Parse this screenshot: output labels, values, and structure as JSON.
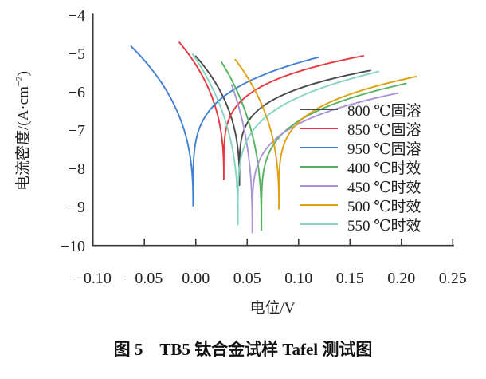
{
  "figure": {
    "caption": "图 5　TB5 钛合金试样 Tafel 测试图"
  },
  "chart_data": {
    "type": "line",
    "title": "图 5　TB5 钛合金试样 Tafel 测试图",
    "xlabel": "电位/V",
    "ylabel": "电流密度/(A·cm−2)",
    "ylabel_parts": {
      "pre": "电流密度/(A·cm",
      "sup": "−2",
      "post": ")"
    },
    "xlim": [
      -0.1,
      0.25
    ],
    "ylim": [
      -10,
      -4
    ],
    "grid": false,
    "legend_position": "inside-right",
    "x_ticks": {
      "values": [
        -0.1,
        -0.05,
        0.0,
        0.05,
        0.1,
        0.15,
        0.2,
        0.25
      ],
      "labels": [
        "−0.10",
        "−0.05",
        "0.00",
        "0.05",
        "0.10",
        "0.15",
        "0.20",
        "0.25"
      ]
    },
    "y_ticks": {
      "values": [
        -4,
        -5,
        -6,
        -7,
        -8,
        -9,
        -10
      ],
      "labels": [
        "−4",
        "−5",
        "−6",
        "−7",
        "−8",
        "−9",
        "−10"
      ]
    },
    "axis_color": "#3a3a3a",
    "series_note": "Tafel polarization curves: log10 current density (A·cm−2) vs potential (V). Each curve: cathodic branch start point, corrosion potential (dip), minimum log current at dip, anodic branch end point.",
    "series": [
      {
        "name": "800 ℃固溶",
        "color": "#4a4a4c",
        "cathodic_start": [
          0.0,
          -5.05
        ],
        "ecorr_V": 0.0425,
        "log_i_min": -8.41,
        "anodic_end": [
          0.17,
          -5.42
        ]
      },
      {
        "name": "850 ℃固溶",
        "color": "#e8383f",
        "cathodic_start": [
          -0.016,
          -4.69
        ],
        "ecorr_V": 0.0273,
        "log_i_min": -8.26,
        "anodic_end": [
          0.163,
          -5.04
        ]
      },
      {
        "name": "950 ℃固溶",
        "color": "#4280d4",
        "cathodic_start": [
          -0.063,
          -4.79
        ],
        "ecorr_V": -0.0026,
        "log_i_min": -8.95,
        "anodic_end": [
          0.119,
          -5.08
        ]
      },
      {
        "name": "400 ℃时效",
        "color": "#55b35f",
        "cathodic_start": [
          0.025,
          -5.2
        ],
        "ecorr_V": 0.0639,
        "log_i_min": -9.58,
        "anodic_end": [
          0.2045,
          -5.76
        ]
      },
      {
        "name": "450 ℃时效",
        "color": "#ab93d6",
        "cathodic_start": [
          0.035,
          -5.8
        ],
        "ecorr_V": 0.055,
        "log_i_min": -9.65,
        "anodic_end": [
          0.1966,
          -6.01
        ]
      },
      {
        "name": "500 ℃时效",
        "color": "#dfa013",
        "cathodic_start": [
          0.0385,
          -5.14
        ],
        "ecorr_V": 0.0809,
        "log_i_min": -9.03,
        "anodic_end": [
          0.2145,
          -5.58
        ]
      },
      {
        "name": "550 ℃时效",
        "color": "#85d5c2",
        "cathodic_start": [
          -0.003,
          -5.0
        ],
        "ecorr_V": 0.041,
        "log_i_min": -9.44,
        "anodic_end": [
          0.178,
          -5.45
        ]
      }
    ]
  }
}
